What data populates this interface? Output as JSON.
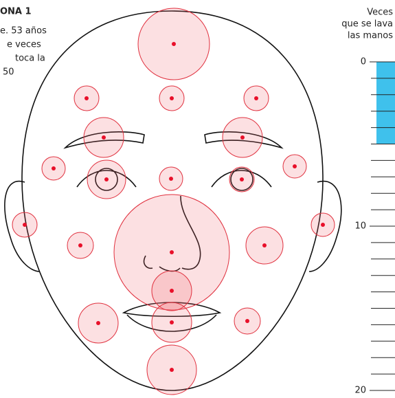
{
  "annotation": {
    "title": "ONA 1",
    "lines": [
      "e. 53 años",
      "e veces",
      "toca la",
      "50"
    ]
  },
  "chart_data": {
    "type": "gauge",
    "title_lines": [
      "Veces",
      "que se lava",
      "las manos"
    ],
    "value": 5,
    "color": "#3fc1ec",
    "ylim": [
      0,
      20
    ],
    "yticks": [
      0,
      10,
      20
    ],
    "yminorticks": [
      1,
      2,
      3,
      4,
      5,
      6,
      7,
      8,
      9,
      11,
      12,
      13,
      14,
      15,
      16,
      17,
      18,
      19
    ]
  }
}
